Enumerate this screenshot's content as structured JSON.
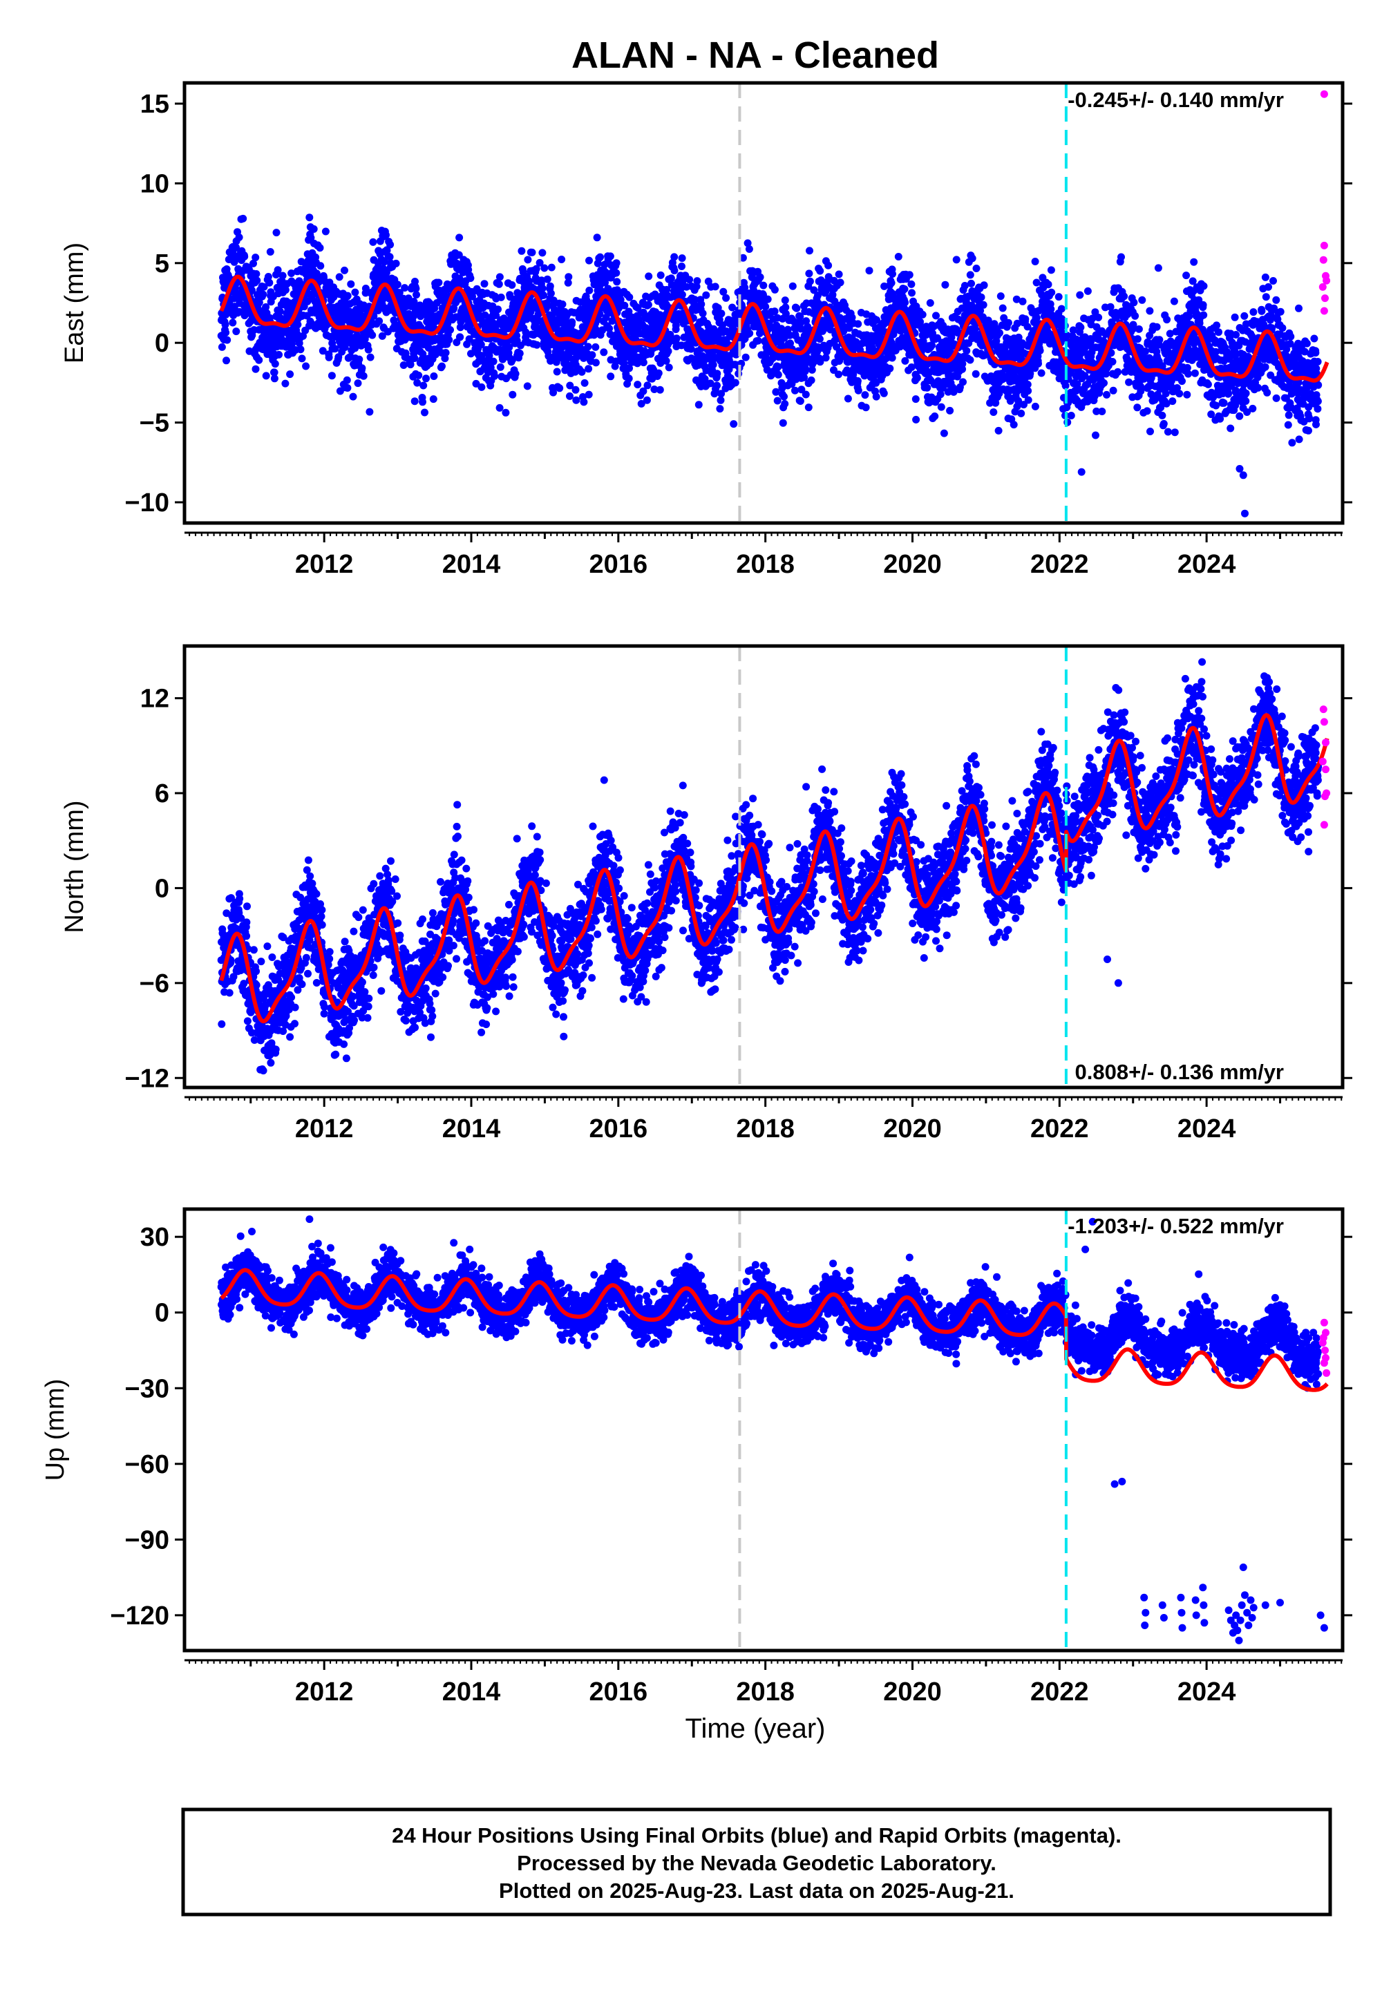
{
  "chart_data": {
    "type": "scatter",
    "title": "ALAN  - NA - Cleaned",
    "xlabel": "Time (year)",
    "xlim": [
      2010.1,
      2025.85
    ],
    "xticks": [
      2012,
      2014,
      2016,
      2018,
      2020,
      2022,
      2024
    ],
    "xtick_labels": [
      "2012",
      "2014",
      "2016",
      "2018",
      "2020",
      "2022",
      "2024"
    ],
    "grid": false,
    "colors": {
      "final": "#0000ff",
      "rapid": "#ff00ff",
      "model": "#ff0000",
      "offset_vline": "#00e5ee",
      "equipment_vline": "#c8c8c8"
    },
    "vertical_lines": [
      {
        "x": 2017.65,
        "style": "dashed",
        "color": "#c8c8c8"
      },
      {
        "x": 2022.09,
        "style": "dashed",
        "color": "#00e5ee"
      }
    ],
    "panels": [
      {
        "ylabel": "East (mm)",
        "ylim": [
          -11.3,
          16.3
        ],
        "yticks": [
          15,
          10,
          5,
          0,
          -5,
          -10
        ],
        "ytick_labels": [
          "15",
          "10",
          "5",
          "0",
          "−5",
          "−10"
        ],
        "rate_text": "-0.245+/- 0.140 mm/yr",
        "rate_position": "top-right",
        "trend": {
          "t0": 2010.6,
          "y0": 2.3,
          "slope": -0.245
        },
        "seasonal": {
          "annual_amplitude": 1.4,
          "annual_phase": 0.58,
          "semiannual_amplitude": 0.5,
          "semiannual_phase": 0.7
        },
        "scatter_sd": 1.5,
        "final_range": [
          2010.6,
          2025.52
        ],
        "rapid_range": [
          2025.52,
          2025.64
        ],
        "steps": [],
        "outliers": [
          {
            "x": 2022.3,
            "y": -8.1
          },
          {
            "x": 2024.45,
            "y": -7.9
          },
          {
            "x": 2024.5,
            "y": -8.3
          },
          {
            "x": 2024.52,
            "y": -10.7
          },
          {
            "x": 2019.0,
            "y": 4.3
          }
        ],
        "rapid_points": [
          {
            "x": 2025.6,
            "y": 15.6
          },
          {
            "x": 2025.6,
            "y": 6.1
          },
          {
            "x": 2025.62,
            "y": 4.2
          },
          {
            "x": 2025.58,
            "y": 3.5
          },
          {
            "x": 2025.61,
            "y": 2.8
          },
          {
            "x": 2025.6,
            "y": 2.0
          },
          {
            "x": 2025.63,
            "y": 3.9
          },
          {
            "x": 2025.59,
            "y": 5.2
          }
        ]
      },
      {
        "ylabel": "North (mm)",
        "ylim": [
          -12.6,
          15.3
        ],
        "yticks": [
          12,
          6,
          0,
          -6,
          -12
        ],
        "ytick_labels": [
          "12",
          "6",
          "0",
          "−6",
          "−12"
        ],
        "rate_text": "0.808+/- 0.136 mm/yr",
        "rate_position": "bottom-right",
        "trend": {
          "t0": 2010.6,
          "y0": -6.3,
          "slope": 0.808
        },
        "seasonal": {
          "annual_amplitude": 2.6,
          "annual_phase": 0.52,
          "semiannual_amplitude": 0.8,
          "semiannual_phase": 0.72
        },
        "scatter_sd": 1.5,
        "final_range": [
          2010.6,
          2025.52
        ],
        "rapid_range": [
          2025.52,
          2025.64
        ],
        "steps": [
          {
            "x": 2022.09,
            "dy": 2.5
          }
        ],
        "outliers": [
          {
            "x": 2022.65,
            "y": -4.5
          },
          {
            "x": 2022.8,
            "y": -6.0
          },
          {
            "x": 2021.9,
            "y": 5.8
          }
        ],
        "rapid_points": [
          {
            "x": 2025.6,
            "y": 10.5
          },
          {
            "x": 2025.62,
            "y": 9.2
          },
          {
            "x": 2025.58,
            "y": 8.0
          },
          {
            "x": 2025.61,
            "y": 5.8
          },
          {
            "x": 2025.6,
            "y": 4.0
          },
          {
            "x": 2025.63,
            "y": 6.0
          },
          {
            "x": 2025.59,
            "y": 11.3
          },
          {
            "x": 2025.62,
            "y": 7.5
          }
        ]
      },
      {
        "ylabel": "Up (mm)",
        "ylim": [
          -134,
          41
        ],
        "yticks": [
          30,
          0,
          -30,
          -60,
          -90,
          -120
        ],
        "ytick_labels": [
          "30",
          "0",
          "−30",
          "−60",
          "−90",
          "−120"
        ],
        "rate_text": "-1.203+/- 0.522 mm/yr",
        "rate_position": "top-right",
        "trend": {
          "t0": 2010.6,
          "y0": 9.5,
          "slope": -1.203
        },
        "seasonal": {
          "annual_amplitude": 6.5,
          "annual_phase": 0.68,
          "semiannual_amplitude": 1.2,
          "semiannual_phase": 0.8
        },
        "scatter_sd": 4.5,
        "final_range": [
          2010.6,
          2025.52
        ],
        "rapid_range": [
          2025.52,
          2025.64
        ],
        "steps": [
          {
            "x": 2022.09,
            "dy": -17.0
          }
        ],
        "data_offset_after": [
          {
            "x": 2022.09,
            "dy": 12.0
          }
        ],
        "outliers": [
          {
            "x": 2022.35,
            "y": 25
          },
          {
            "x": 2022.45,
            "y": 36
          },
          {
            "x": 2011.8,
            "y": 37
          },
          {
            "x": 2022.75,
            "y": -68
          },
          {
            "x": 2022.85,
            "y": -67
          },
          {
            "x": 2023.15,
            "y": -113
          },
          {
            "x": 2023.17,
            "y": -119
          },
          {
            "x": 2023.16,
            "y": -124
          },
          {
            "x": 2023.4,
            "y": -116
          },
          {
            "x": 2023.42,
            "y": -121
          },
          {
            "x": 2023.65,
            "y": -113
          },
          {
            "x": 2023.66,
            "y": -119
          },
          {
            "x": 2023.67,
            "y": -125
          },
          {
            "x": 2023.85,
            "y": -114
          },
          {
            "x": 2023.86,
            "y": -120
          },
          {
            "x": 2023.95,
            "y": -109
          },
          {
            "x": 2023.96,
            "y": -116
          },
          {
            "x": 2023.97,
            "y": -123
          },
          {
            "x": 2024.3,
            "y": -118
          },
          {
            "x": 2024.33,
            "y": -122
          },
          {
            "x": 2024.36,
            "y": -127
          },
          {
            "x": 2024.38,
            "y": -124
          },
          {
            "x": 2024.4,
            "y": -120
          },
          {
            "x": 2024.42,
            "y": -126
          },
          {
            "x": 2024.44,
            "y": -130
          },
          {
            "x": 2024.46,
            "y": -122
          },
          {
            "x": 2024.48,
            "y": -116
          },
          {
            "x": 2024.5,
            "y": -101
          },
          {
            "x": 2024.52,
            "y": -112
          },
          {
            "x": 2024.55,
            "y": -119
          },
          {
            "x": 2024.57,
            "y": -124
          },
          {
            "x": 2024.6,
            "y": -114
          },
          {
            "x": 2024.62,
            "y": -121
          },
          {
            "x": 2024.64,
            "y": -117
          },
          {
            "x": 2024.8,
            "y": -116
          },
          {
            "x": 2025.0,
            "y": -115
          },
          {
            "x": 2025.55,
            "y": -120
          },
          {
            "x": 2025.6,
            "y": -125
          }
        ],
        "rapid_points": [
          {
            "x": 2025.6,
            "y": -4
          },
          {
            "x": 2025.62,
            "y": -8
          },
          {
            "x": 2025.58,
            "y": -12
          },
          {
            "x": 2025.61,
            "y": -15
          },
          {
            "x": 2025.6,
            "y": -20
          },
          {
            "x": 2025.63,
            "y": -24
          },
          {
            "x": 2025.59,
            "y": -10
          },
          {
            "x": 2025.62,
            "y": -18
          }
        ]
      }
    ]
  },
  "footer": {
    "line1": "24 Hour Positions Using Final Orbits (blue) and Rapid Orbits (magenta).",
    "line2": "Processed by the Nevada Geodetic Laboratory.",
    "line3": "Plotted on 2025-Aug-23. Last data on 2025-Aug-21."
  }
}
